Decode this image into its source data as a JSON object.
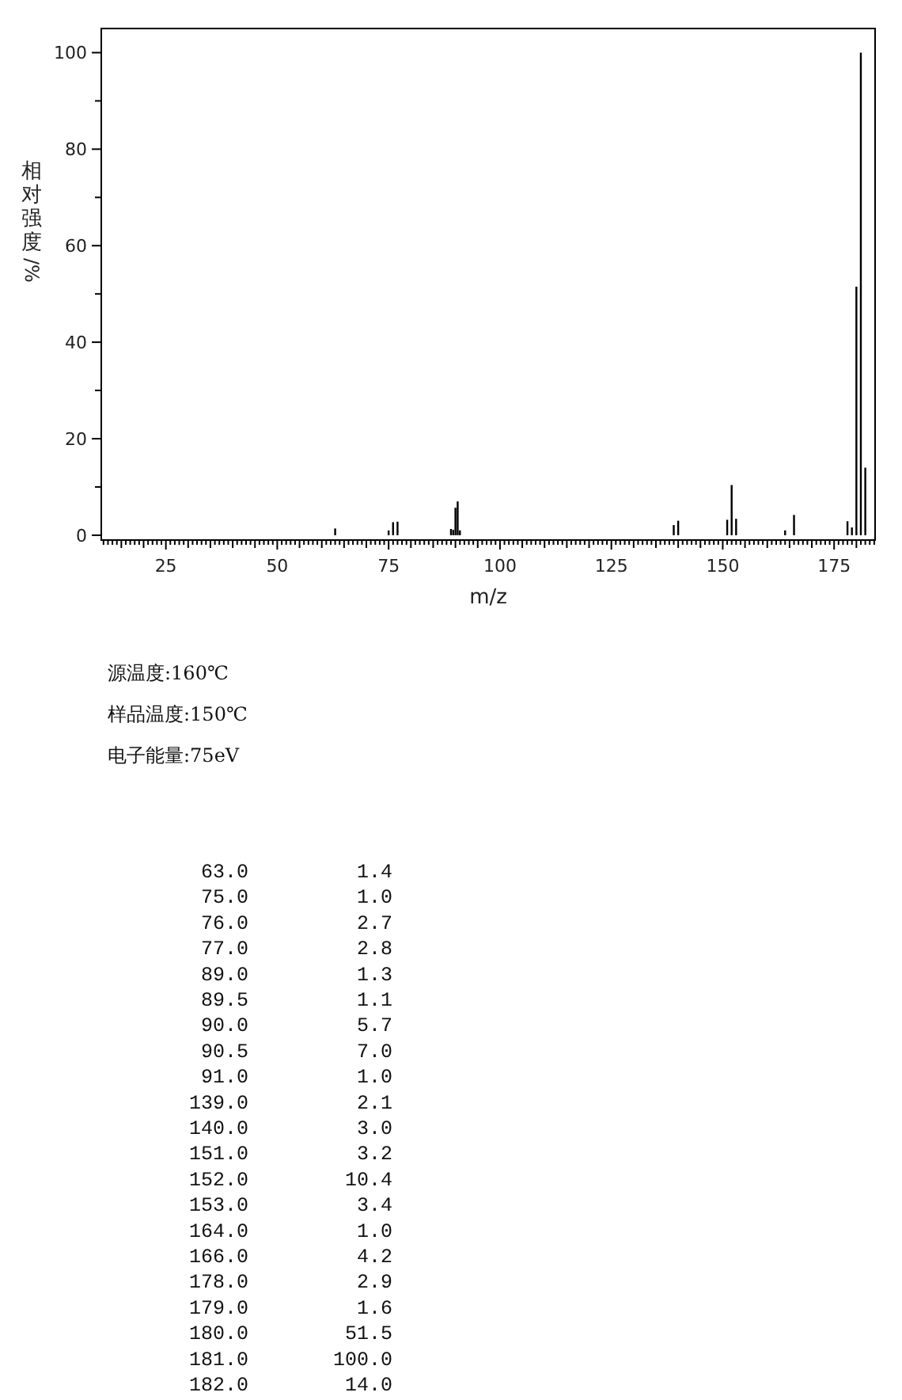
{
  "chart_data": [
    {
      "type": "bar",
      "xlabel": "m/z",
      "ylabel": "相对强度/%",
      "x": [
        63,
        75,
        76,
        77,
        89,
        89.5,
        90,
        90.5,
        91,
        139,
        140,
        151,
        152,
        153,
        164,
        166,
        178,
        179,
        180,
        181,
        182
      ],
      "values": [
        1.4,
        1.0,
        2.7,
        2.8,
        1.3,
        1.1,
        5.7,
        7.0,
        1.0,
        2.1,
        3.0,
        3.2,
        10.4,
        3.4,
        1.0,
        4.2,
        2.9,
        1.6,
        51.5,
        100.0,
        14.0
      ],
      "color": "#000000",
      "xlim": [
        10.5,
        184.2
      ],
      "ylim": [
        -1,
        105
      ],
      "xticks": [
        25,
        50,
        75,
        100,
        125,
        150,
        175,
        {
          "value": 11,
          "label": null
        },
        {
          "value": 12,
          "label": null
        },
        {
          "value": 13,
          "label": null
        },
        {
          "value": 14,
          "label": null
        },
        {
          "value": 15,
          "label": null
        },
        {
          "value": 16,
          "label": null
        },
        {
          "value": 17,
          "label": null
        },
        {
          "value": 18,
          "label": null
        },
        {
          "value": 19,
          "label": null
        },
        {
          "value": 20,
          "label": null
        },
        {
          "value": 21,
          "label": null
        },
        {
          "value": 22,
          "label": null
        },
        {
          "value": 23,
          "label": null
        },
        {
          "value": 24,
          "label": null
        },
        {
          "value": 26,
          "label": null
        },
        {
          "value": 27,
          "label": null
        },
        {
          "value": 28,
          "label": null
        },
        {
          "value": 29,
          "label": null
        },
        {
          "value": 30,
          "label": null
        },
        {
          "value": 31,
          "label": null
        },
        {
          "value": 32,
          "label": null
        },
        {
          "value": 33,
          "label": null
        },
        {
          "value": 34,
          "label": null
        },
        {
          "value": 35,
          "label": null
        },
        {
          "value": 36,
          "label": null
        },
        {
          "value": 37,
          "label": null
        },
        {
          "value": 38,
          "label": null
        },
        {
          "value": 39,
          "label": null
        },
        {
          "value": 40,
          "label": null
        },
        {
          "value": 41,
          "label": null
        },
        {
          "value": 42,
          "label": null
        },
        {
          "value": 43,
          "label": null
        },
        {
          "value": 44,
          "label": null
        },
        {
          "value": 45,
          "label": null
        },
        {
          "value": 46,
          "label": null
        },
        {
          "value": 47,
          "label": null
        },
        {
          "value": 48,
          "label": null
        },
        {
          "value": 49,
          "label": null
        },
        {
          "value": 51,
          "label": null
        },
        {
          "value": 52,
          "label": null
        },
        {
          "value": 53,
          "label": null
        },
        {
          "value": 54,
          "label": null
        },
        {
          "value": 55,
          "label": null
        },
        {
          "value": 56,
          "label": null
        },
        {
          "value": 57,
          "label": null
        },
        {
          "value": 58,
          "label": null
        },
        {
          "value": 59,
          "label": null
        },
        {
          "value": 60,
          "label": null
        },
        {
          "value": 61,
          "label": null
        },
        {
          "value": 62,
          "label": null
        },
        {
          "value": 63,
          "label": null
        },
        {
          "value": 64,
          "label": null
        },
        {
          "value": 65,
          "label": null
        },
        {
          "value": 66,
          "label": null
        },
        {
          "value": 67,
          "label": null
        },
        {
          "value": 68,
          "label": null
        },
        {
          "value": 69,
          "label": null
        },
        {
          "value": 70,
          "label": null
        },
        {
          "value": 71,
          "label": null
        },
        {
          "value": 72,
          "label": null
        },
        {
          "value": 73,
          "label": null
        },
        {
          "value": 74,
          "label": null
        },
        {
          "value": 76,
          "label": null
        },
        {
          "value": 77,
          "label": null
        },
        {
          "value": 78,
          "label": null
        },
        {
          "value": 79,
          "label": null
        },
        {
          "value": 80,
          "label": null
        },
        {
          "value": 81,
          "label": null
        },
        {
          "value": 82,
          "label": null
        },
        {
          "value": 83,
          "label": null
        },
        {
          "value": 84,
          "label": null
        },
        {
          "value": 85,
          "label": null
        },
        {
          "value": 86,
          "label": null
        },
        {
          "value": 87,
          "label": null
        },
        {
          "value": 88,
          "label": null
        },
        {
          "value": 89,
          "label": null
        },
        {
          "value": 90,
          "label": null
        },
        {
          "value": 91,
          "label": null
        },
        {
          "value": 92,
          "label": null
        },
        {
          "value": 93,
          "label": null
        },
        {
          "value": 94,
          "label": null
        },
        {
          "value": 95,
          "label": null
        },
        {
          "value": 96,
          "label": null
        },
        {
          "value": 97,
          "label": null
        },
        {
          "value": 98,
          "label": null
        },
        {
          "value": 99,
          "label": null
        },
        {
          "value": 101,
          "label": null
        },
        {
          "value": 102,
          "label": null
        },
        {
          "value": 103,
          "label": null
        },
        {
          "value": 104,
          "label": null
        },
        {
          "value": 105,
          "label": null
        },
        {
          "value": 106,
          "label": null
        },
        {
          "value": 107,
          "label": null
        },
        {
          "value": 108,
          "label": null
        },
        {
          "value": 109,
          "label": null
        },
        {
          "value": 110,
          "label": null
        },
        {
          "value": 111,
          "label": null
        },
        {
          "value": 112,
          "label": null
        },
        {
          "value": 113,
          "label": null
        },
        {
          "value": 114,
          "label": null
        },
        {
          "value": 115,
          "label": null
        },
        {
          "value": 116,
          "label": null
        },
        {
          "value": 117,
          "label": null
        },
        {
          "value": 118,
          "label": null
        },
        {
          "value": 119,
          "label": null
        },
        {
          "value": 120,
          "label": null
        },
        {
          "value": 121,
          "label": null
        },
        {
          "value": 122,
          "label": null
        },
        {
          "value": 123,
          "label": null
        },
        {
          "value": 124,
          "label": null
        },
        {
          "value": 126,
          "label": null
        },
        {
          "value": 127,
          "label": null
        },
        {
          "value": 128,
          "label": null
        },
        {
          "value": 129,
          "label": null
        },
        {
          "value": 130,
          "label": null
        },
        {
          "value": 131,
          "label": null
        },
        {
          "value": 132,
          "label": null
        },
        {
          "value": 133,
          "label": null
        },
        {
          "value": 134,
          "label": null
        },
        {
          "value": 135,
          "label": null
        },
        {
          "value": 136,
          "label": null
        },
        {
          "value": 137,
          "label": null
        },
        {
          "value": 138,
          "label": null
        },
        {
          "value": 139,
          "label": null
        },
        {
          "value": 140,
          "label": null
        },
        {
          "value": 141,
          "label": null
        },
        {
          "value": 142,
          "label": null
        },
        {
          "value": 143,
          "label": null
        },
        {
          "value": 144,
          "label": null
        },
        {
          "value": 145,
          "label": null
        },
        {
          "value": 146,
          "label": null
        },
        {
          "value": 147,
          "label": null
        },
        {
          "value": 148,
          "label": null
        },
        {
          "value": 149,
          "label": null
        },
        {
          "value": 151,
          "label": null
        },
        {
          "value": 152,
          "label": null
        },
        {
          "value": 153,
          "label": null
        },
        {
          "value": 154,
          "label": null
        },
        {
          "value": 155,
          "label": null
        },
        {
          "value": 156,
          "label": null
        },
        {
          "value": 157,
          "label": null
        },
        {
          "value": 158,
          "label": null
        },
        {
          "value": 159,
          "label": null
        },
        {
          "value": 160,
          "label": null
        },
        {
          "value": 161,
          "label": null
        },
        {
          "value": 162,
          "label": null
        },
        {
          "value": 163,
          "label": null
        },
        {
          "value": 164,
          "label": null
        },
        {
          "value": 165,
          "label": null
        },
        {
          "value": 166,
          "label": null
        },
        {
          "value": 167,
          "label": null
        },
        {
          "value": 168,
          "label": null
        },
        {
          "value": 169,
          "label": null
        },
        {
          "value": 170,
          "label": null
        },
        {
          "value": 171,
          "label": null
        },
        {
          "value": 172,
          "label": null
        },
        {
          "value": 173,
          "label": null
        },
        {
          "value": 174,
          "label": null
        },
        {
          "value": 176,
          "label": null
        },
        {
          "value": 177,
          "label": null
        },
        {
          "value": 178,
          "label": null
        },
        {
          "value": 179,
          "label": null
        },
        {
          "value": 180,
          "label": null
        },
        {
          "value": 181,
          "label": null
        },
        {
          "value": 182,
          "label": null
        },
        {
          "value": 183,
          "label": null
        },
        {
          "value": 184,
          "label": null
        }
      ],
      "yticks": [
        0,
        20,
        40,
        60,
        80,
        100,
        {
          "value": 10,
          "label": null
        },
        {
          "value": 30,
          "label": null
        },
        {
          "value": 50,
          "label": null
        },
        {
          "value": 70,
          "label": null
        },
        {
          "value": 90,
          "label": null
        }
      ],
      "annotations": [
        "源温度:160℃",
        "样品温度:150℃",
        "电子能量:75eV"
      ]
    },
    {
      "type": "other",
      "categories": [
        "63.0",
        "75.0",
        "76.0",
        "77.0",
        "89.0",
        "89.5",
        "90.0",
        "90.5",
        "91.0",
        "139.0",
        "140.0",
        "151.0",
        "152.0",
        "153.0",
        "164.0",
        "166.0",
        "178.0",
        "179.0",
        "180.0",
        "181.0",
        "182.0"
      ],
      "value_labels": [
        "1.4",
        "1.0",
        "2.7",
        "2.8",
        "1.3",
        "1.1",
        "5.7",
        "7.0",
        "1.0",
        "2.1",
        "3.0",
        "3.2",
        "10.4",
        "3.4",
        "1.0",
        "4.2",
        "2.9",
        "1.6",
        "51.5",
        "100.0",
        "14.0"
      ]
    }
  ]
}
